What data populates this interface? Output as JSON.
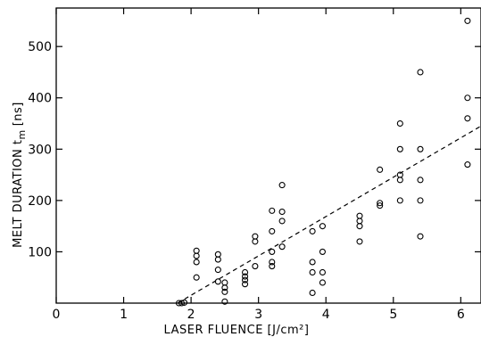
{
  "chart_data": {
    "type": "scatter",
    "title": "",
    "xlabel": "LASER FLUENCE [J/cm²]",
    "ylabel": "MELT DURATION t",
    "ylabel_subscript": "m",
    "ylabel_unit": "[ns]",
    "xlim": [
      0,
      6.3
    ],
    "ylim": [
      0,
      575
    ],
    "x_ticks": [
      0,
      1,
      2,
      3,
      4,
      5,
      6
    ],
    "y_ticks": [
      100,
      200,
      300,
      400,
      500
    ],
    "grid": false,
    "legend": "none",
    "series": [
      {
        "marker": "open-circle",
        "points": [
          [
            1.82,
            0
          ],
          [
            1.86,
            0
          ],
          [
            1.9,
            1
          ],
          [
            2.08,
            102
          ],
          [
            2.08,
            92
          ],
          [
            2.08,
            80
          ],
          [
            2.08,
            50
          ],
          [
            2.4,
            95
          ],
          [
            2.4,
            85
          ],
          [
            2.4,
            65
          ],
          [
            2.4,
            42
          ],
          [
            2.5,
            40
          ],
          [
            2.5,
            30
          ],
          [
            2.5,
            22
          ],
          [
            2.5,
            3
          ],
          [
            2.8,
            60
          ],
          [
            2.8,
            52
          ],
          [
            2.8,
            45
          ],
          [
            2.8,
            37
          ],
          [
            2.95,
            130
          ],
          [
            2.95,
            120
          ],
          [
            2.95,
            72
          ],
          [
            3.2,
            180
          ],
          [
            3.2,
            140
          ],
          [
            3.2,
            100
          ],
          [
            3.2,
            80
          ],
          [
            3.2,
            72
          ],
          [
            3.35,
            230
          ],
          [
            3.35,
            178
          ],
          [
            3.35,
            160
          ],
          [
            3.35,
            110
          ],
          [
            3.8,
            140
          ],
          [
            3.8,
            80
          ],
          [
            3.8,
            60
          ],
          [
            3.8,
            20
          ],
          [
            3.95,
            150
          ],
          [
            3.95,
            100
          ],
          [
            3.95,
            60
          ],
          [
            3.95,
            40
          ],
          [
            4.5,
            170
          ],
          [
            4.5,
            160
          ],
          [
            4.5,
            150
          ],
          [
            4.5,
            120
          ],
          [
            4.8,
            260
          ],
          [
            4.8,
            195
          ],
          [
            4.8,
            190
          ],
          [
            5.1,
            350
          ],
          [
            5.1,
            300
          ],
          [
            5.1,
            250
          ],
          [
            5.1,
            240
          ],
          [
            5.1,
            200
          ],
          [
            5.4,
            450
          ],
          [
            5.4,
            300
          ],
          [
            5.4,
            240
          ],
          [
            5.4,
            200
          ],
          [
            5.4,
            130
          ],
          [
            6.1,
            550
          ],
          [
            6.1,
            400
          ],
          [
            6.1,
            360
          ],
          [
            6.1,
            270
          ]
        ]
      }
    ],
    "fit_line": {
      "style": "dashed",
      "points": [
        [
          1.8,
          0
        ],
        [
          6.3,
          345
        ]
      ]
    }
  }
}
